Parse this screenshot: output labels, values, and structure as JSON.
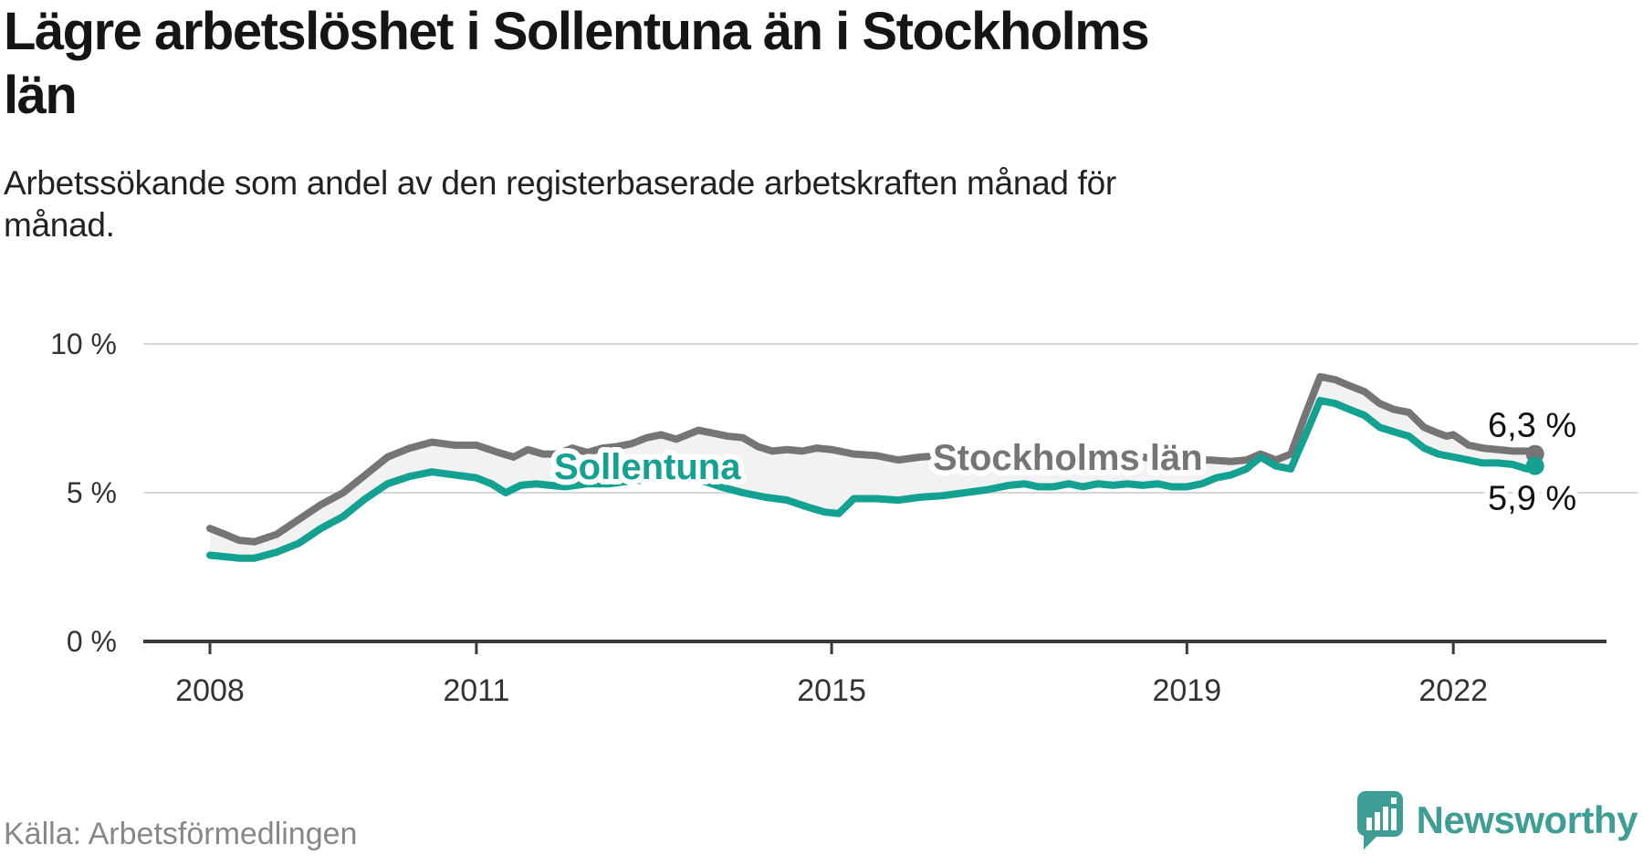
{
  "title_lines": [
    "Lägre arbetslöshet i Sollentuna än i Stockholms",
    "län"
  ],
  "subtitle_lines": [
    "Arbetssökande som andel av den registerbaserade arbetskraften månad för",
    "månad."
  ],
  "source": "Källa: Arbetsförmedlingen",
  "logo": {
    "text": "Newsworthy",
    "icon": "newsworthy-bar-chart-bubble-icon",
    "color": "#3E9D94"
  },
  "colors": {
    "stockholm_line": "#757575",
    "sollentuna_line": "#13A191",
    "band_fill": "#F2F2F2",
    "gridline": "#D8D8D8",
    "axis": "#3A3A3A",
    "tick_label": "#333333",
    "end_label": "#111111"
  },
  "chart_data": {
    "type": "line",
    "title": "Lägre arbetslöshet i Sollentuna än i Stockholms län",
    "subtitle": "Arbetssökande som andel av den registerbaserade arbetskraften månad för månad.",
    "unit": "%",
    "grid": "horizontal",
    "x_axis": {
      "ticks": [
        2008,
        2011,
        2015,
        2019,
        2022
      ],
      "tick_labels": [
        "2008",
        "2011",
        "2015",
        "2019",
        "2022"
      ],
      "range_years": [
        2008,
        2023.7
      ]
    },
    "y_axis": {
      "ticks": [
        0,
        5,
        10
      ],
      "tick_labels": [
        "0 %",
        "5 %",
        "10 %"
      ],
      "range": [
        0,
        10
      ]
    },
    "band_fill_between_series": true,
    "series": [
      {
        "name": "Stockholms län",
        "color": "#757575",
        "end_value": 6.3,
        "end_label": "6,3 %",
        "points": [
          [
            2008.0,
            3.8
          ],
          [
            2008.17,
            3.6
          ],
          [
            2008.33,
            3.4
          ],
          [
            2008.5,
            3.35
          ],
          [
            2008.75,
            3.6
          ],
          [
            2009.0,
            4.1
          ],
          [
            2009.25,
            4.6
          ],
          [
            2009.5,
            5.0
          ],
          [
            2009.75,
            5.6
          ],
          [
            2010.0,
            6.2
          ],
          [
            2010.25,
            6.5
          ],
          [
            2010.5,
            6.7
          ],
          [
            2010.75,
            6.6
          ],
          [
            2011.0,
            6.6
          ],
          [
            2011.25,
            6.35
          ],
          [
            2011.42,
            6.2
          ],
          [
            2011.58,
            6.45
          ],
          [
            2011.75,
            6.3
          ],
          [
            2011.92,
            6.3
          ],
          [
            2012.08,
            6.5
          ],
          [
            2012.25,
            6.35
          ],
          [
            2012.42,
            6.5
          ],
          [
            2012.58,
            6.55
          ],
          [
            2012.75,
            6.65
          ],
          [
            2012.92,
            6.85
          ],
          [
            2013.08,
            6.95
          ],
          [
            2013.25,
            6.8
          ],
          [
            2013.5,
            7.1
          ],
          [
            2013.67,
            7.0
          ],
          [
            2013.83,
            6.9
          ],
          [
            2014.0,
            6.85
          ],
          [
            2014.17,
            6.55
          ],
          [
            2014.33,
            6.4
          ],
          [
            2014.5,
            6.45
          ],
          [
            2014.67,
            6.4
          ],
          [
            2014.83,
            6.5
          ],
          [
            2015.0,
            6.45
          ],
          [
            2015.25,
            6.3
          ],
          [
            2015.5,
            6.25
          ],
          [
            2015.75,
            6.1
          ],
          [
            2016.0,
            6.2
          ],
          [
            2016.25,
            6.25
          ],
          [
            2016.5,
            6.2
          ],
          [
            2016.75,
            6.3
          ],
          [
            2017.0,
            6.25
          ],
          [
            2017.25,
            6.2
          ],
          [
            2017.5,
            6.25
          ],
          [
            2017.75,
            6.3
          ],
          [
            2018.0,
            6.2
          ],
          [
            2018.25,
            6.15
          ],
          [
            2018.5,
            6.2
          ],
          [
            2018.75,
            6.1
          ],
          [
            2019.0,
            6.05
          ],
          [
            2019.25,
            6.1
          ],
          [
            2019.5,
            6.05
          ],
          [
            2019.67,
            6.1
          ],
          [
            2019.83,
            6.3
          ],
          [
            2020.0,
            6.1
          ],
          [
            2020.17,
            6.3
          ],
          [
            2020.33,
            7.6
          ],
          [
            2020.5,
            8.9
          ],
          [
            2020.67,
            8.8
          ],
          [
            2020.83,
            8.6
          ],
          [
            2021.0,
            8.4
          ],
          [
            2021.17,
            8.0
          ],
          [
            2021.33,
            7.8
          ],
          [
            2021.5,
            7.7
          ],
          [
            2021.67,
            7.2
          ],
          [
            2021.83,
            7.0
          ],
          [
            2021.92,
            6.9
          ],
          [
            2022.0,
            6.95
          ],
          [
            2022.17,
            6.6
          ],
          [
            2022.33,
            6.5
          ],
          [
            2022.5,
            6.45
          ],
          [
            2022.67,
            6.4
          ],
          [
            2022.83,
            6.4
          ],
          [
            2022.92,
            6.3
          ]
        ]
      },
      {
        "name": "Sollentuna",
        "color": "#13A191",
        "end_value": 5.9,
        "end_label": "5,9 %",
        "points": [
          [
            2008.0,
            2.9
          ],
          [
            2008.17,
            2.85
          ],
          [
            2008.33,
            2.8
          ],
          [
            2008.5,
            2.8
          ],
          [
            2008.75,
            3.0
          ],
          [
            2009.0,
            3.3
          ],
          [
            2009.25,
            3.8
          ],
          [
            2009.5,
            4.2
          ],
          [
            2009.75,
            4.8
          ],
          [
            2010.0,
            5.3
          ],
          [
            2010.25,
            5.55
          ],
          [
            2010.5,
            5.7
          ],
          [
            2010.75,
            5.6
          ],
          [
            2011.0,
            5.5
          ],
          [
            2011.17,
            5.3
          ],
          [
            2011.33,
            5.0
          ],
          [
            2011.5,
            5.25
          ],
          [
            2011.67,
            5.3
          ],
          [
            2011.83,
            5.25
          ],
          [
            2012.0,
            5.2
          ],
          [
            2012.25,
            5.3
          ],
          [
            2012.5,
            5.3
          ],
          [
            2012.75,
            5.4
          ],
          [
            2013.0,
            5.45
          ],
          [
            2013.25,
            5.5
          ],
          [
            2013.5,
            5.45
          ],
          [
            2013.75,
            5.2
          ],
          [
            2014.0,
            5.0
          ],
          [
            2014.25,
            4.85
          ],
          [
            2014.5,
            4.75
          ],
          [
            2014.75,
            4.5
          ],
          [
            2014.92,
            4.35
          ],
          [
            2015.08,
            4.3
          ],
          [
            2015.25,
            4.8
          ],
          [
            2015.5,
            4.8
          ],
          [
            2015.75,
            4.75
          ],
          [
            2016.0,
            4.85
          ],
          [
            2016.25,
            4.9
          ],
          [
            2016.5,
            5.0
          ],
          [
            2016.75,
            5.1
          ],
          [
            2017.0,
            5.25
          ],
          [
            2017.17,
            5.3
          ],
          [
            2017.33,
            5.2
          ],
          [
            2017.5,
            5.2
          ],
          [
            2017.67,
            5.3
          ],
          [
            2017.83,
            5.2
          ],
          [
            2018.0,
            5.3
          ],
          [
            2018.17,
            5.25
          ],
          [
            2018.33,
            5.3
          ],
          [
            2018.5,
            5.25
          ],
          [
            2018.67,
            5.3
          ],
          [
            2018.83,
            5.2
          ],
          [
            2019.0,
            5.2
          ],
          [
            2019.17,
            5.3
          ],
          [
            2019.33,
            5.5
          ],
          [
            2019.5,
            5.6
          ],
          [
            2019.67,
            5.8
          ],
          [
            2019.83,
            6.2
          ],
          [
            2020.0,
            5.9
          ],
          [
            2020.17,
            5.8
          ],
          [
            2020.33,
            6.9
          ],
          [
            2020.5,
            8.1
          ],
          [
            2020.67,
            8.0
          ],
          [
            2020.83,
            7.8
          ],
          [
            2021.0,
            7.6
          ],
          [
            2021.17,
            7.2
          ],
          [
            2021.33,
            7.05
          ],
          [
            2021.5,
            6.9
          ],
          [
            2021.67,
            6.5
          ],
          [
            2021.83,
            6.3
          ],
          [
            2022.0,
            6.2
          ],
          [
            2022.17,
            6.1
          ],
          [
            2022.33,
            6.0
          ],
          [
            2022.5,
            6.0
          ],
          [
            2022.67,
            5.95
          ],
          [
            2022.83,
            5.8
          ],
          [
            2022.92,
            5.9
          ]
        ]
      }
    ]
  }
}
